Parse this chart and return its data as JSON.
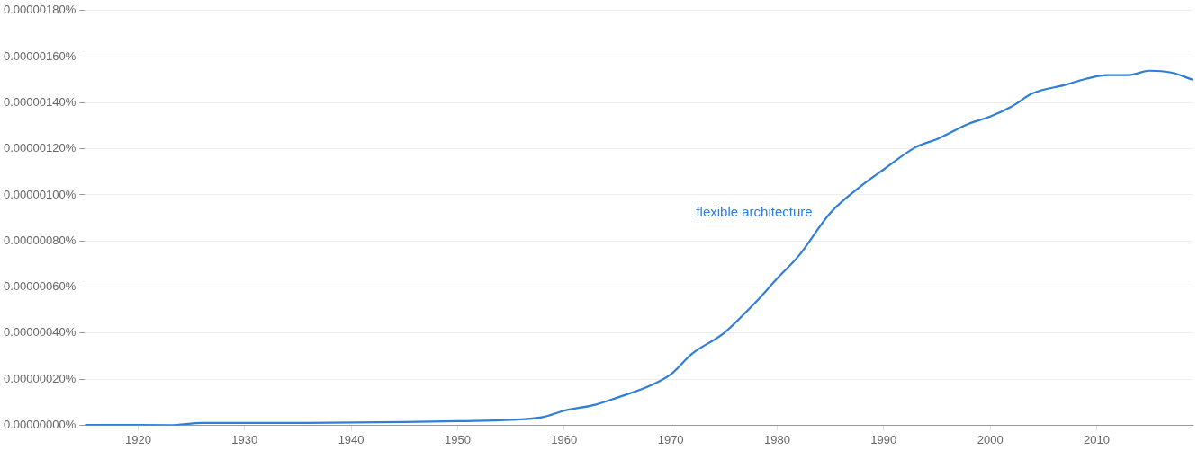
{
  "chart_data": {
    "type": "line",
    "x": [
      1915,
      1920,
      1923,
      1926,
      1935,
      1945,
      1950,
      1955,
      1958,
      1960,
      1963,
      1965,
      1968,
      1970,
      1972,
      1975,
      1978,
      1980,
      1982,
      1985,
      1988,
      1990,
      1993,
      1995,
      1998,
      2000,
      2002,
      2004,
      2007,
      2009,
      2011,
      2013,
      2015,
      2017,
      2019
    ],
    "series": [
      {
        "name": "flexible architecture",
        "color": "#2f7ed8",
        "values": [
          1e-09,
          1e-09,
          5e-10,
          1e-08,
          1e-08,
          1.4e-08,
          1.8e-08,
          2.3e-08,
          3.5e-08,
          6.3e-08,
          9e-08,
          1.2e-07,
          1.7e-07,
          2.2e-07,
          3.1e-07,
          4e-07,
          5.35e-07,
          6.37e-07,
          7.34e-07,
          9.22e-07,
          1.043e-06,
          1.11e-06,
          1.207e-06,
          1.242e-06,
          1.309e-06,
          1.34e-06,
          1.383e-06,
          1.441e-06,
          1.477e-06,
          1.504e-06,
          1.52e-06,
          1.52e-06,
          1.539e-06,
          1.531e-06,
          1.5e-06
        ]
      }
    ],
    "xlim": [
      1915,
      2019
    ],
    "xticks": [
      1920,
      1930,
      1940,
      1950,
      1960,
      1970,
      1980,
      1990,
      2000,
      2010
    ],
    "ylim": [
      0,
      1.8e-06
    ],
    "yticks": [
      {
        "value": 0,
        "label": "0.00000000%"
      },
      {
        "value": 2e-07,
        "label": "0.00000020%"
      },
      {
        "value": 4e-07,
        "label": "0.00000040%"
      },
      {
        "value": 6e-07,
        "label": "0.00000060%"
      },
      {
        "value": 8e-07,
        "label": "0.00000080%"
      },
      {
        "value": 1e-06,
        "label": "0.00000100%"
      },
      {
        "value": 1.2e-06,
        "label": "0.00000120%"
      },
      {
        "value": 1.4e-06,
        "label": "0.00000140%"
      },
      {
        "value": 1.6e-06,
        "label": "0.00000160%"
      },
      {
        "value": 1.8e-06,
        "label": "0.00000180%"
      }
    ],
    "grid": "y",
    "legend": false,
    "marker": "none",
    "line_style": "solid"
  }
}
